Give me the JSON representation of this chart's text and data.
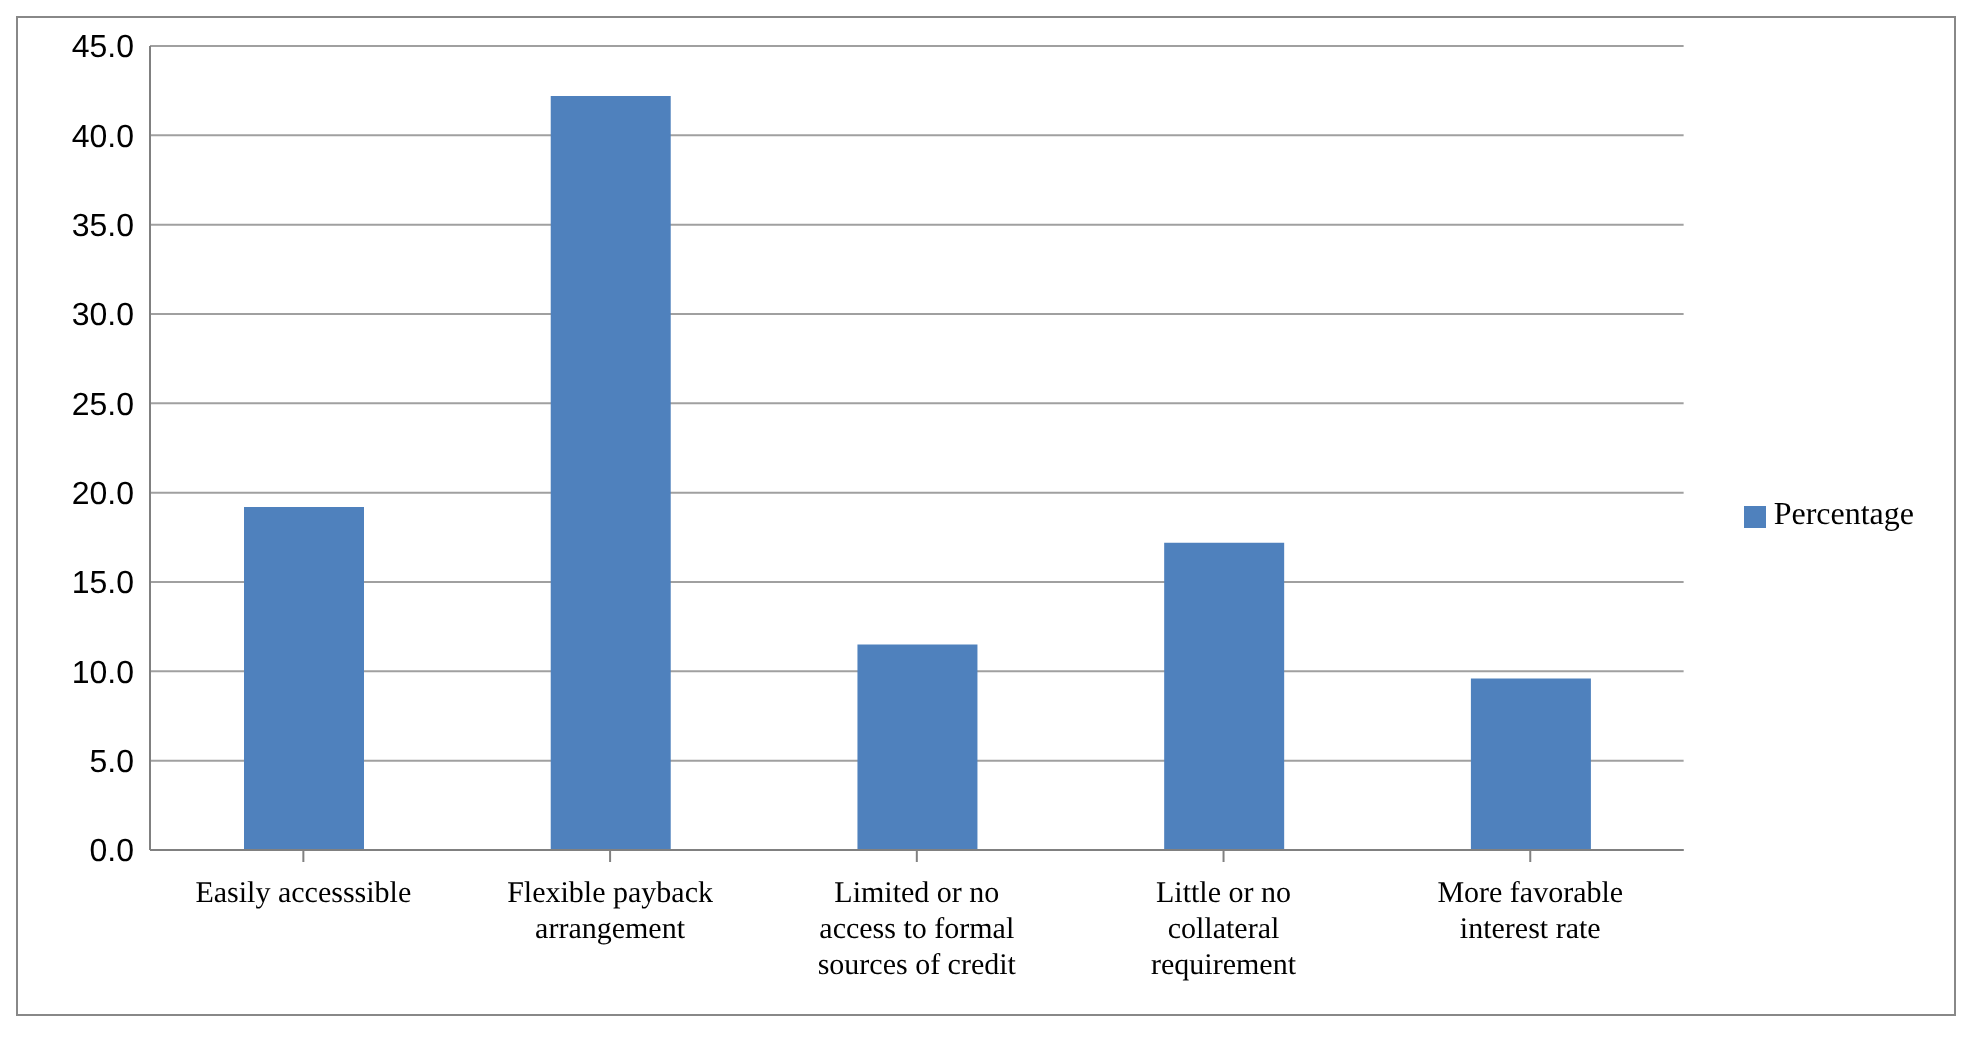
{
  "chart_data": {
    "type": "bar",
    "categories": [
      "Easily accesssible",
      "Flexible payback arrangement",
      "Limited or no access to formal sources of credit",
      "Little or no collateral requirement",
      "More favorable interest rate"
    ],
    "series": [
      {
        "name": "Percentage",
        "color": "#4f81bd",
        "values": [
          19.2,
          42.2,
          11.5,
          17.2,
          9.6
        ]
      }
    ],
    "ylim": [
      0,
      45
    ],
    "yticks": [
      {
        "value": 0,
        "label": "0.0"
      },
      {
        "value": 5,
        "label": "5.0"
      },
      {
        "value": 10,
        "label": "10.0"
      },
      {
        "value": 15,
        "label": "15.0"
      },
      {
        "value": 20,
        "label": "20.0"
      },
      {
        "value": 25,
        "label": "25.0"
      },
      {
        "value": 30,
        "label": "30.0"
      },
      {
        "value": 35,
        "label": "35.0"
      },
      {
        "value": 40,
        "label": "40.0"
      },
      {
        "value": 45,
        "label": "45.0"
      }
    ],
    "grid": "y",
    "legend": "right"
  }
}
